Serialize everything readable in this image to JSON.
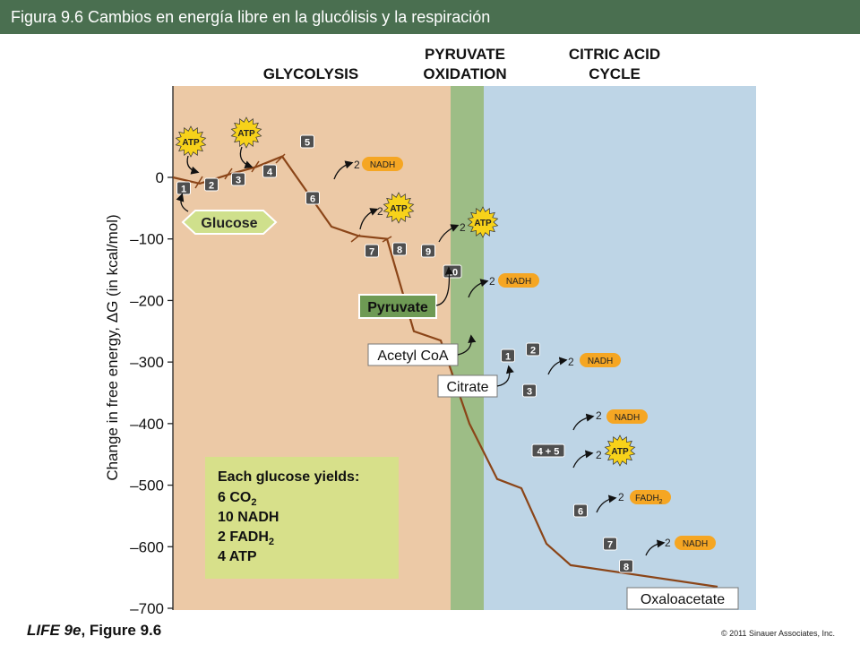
{
  "title": "Figura 9.6  Cambios en energía libre en la glucólisis y la respiración",
  "footer": {
    "left_italic": "LIFE 9e",
    "left_rest": ", Figure 9.6",
    "right": "© 2011 Sinauer Associates, Inc."
  },
  "colors": {
    "title_bar": "#4a6f50",
    "glycolysis_bg": "#ecc9a6",
    "pyruvate_bg": "#9dbd86",
    "citric_bg": "#bed5e6",
    "step_line": "#8b4518",
    "step_box": "#4f4f4f",
    "nadh_badge": "#f5a623",
    "atp_star": "#f7d21a",
    "glucose_box": "#cfe08c",
    "pyruvate_box": "#6e9a54",
    "summary_box": "#d7e08a"
  },
  "stages": {
    "glycolysis": "GLYCOLYSIS",
    "pyruvate_line1": "PYRUVATE",
    "pyruvate_line2": "OXIDATION",
    "citric_line1": "CITRIC ACID",
    "citric_line2": "CYCLE"
  },
  "chart_data": {
    "type": "line",
    "ylabel": "Change in free energy, ΔG (in kcal/mol)",
    "ylim": [
      -700,
      0
    ],
    "yticks": [
      0,
      -100,
      -200,
      -300,
      -400,
      -500,
      -600,
      -700
    ],
    "ytick_labels": [
      "0",
      "–100",
      "–200",
      "–300",
      "–400",
      "–500",
      "–600",
      "–700"
    ],
    "series": [
      {
        "values": [
          0,
          -10,
          -10,
          5,
          5,
          17,
          17,
          34,
          34,
          -80,
          -80,
          -95,
          -95,
          -100,
          -100,
          -250,
          -250,
          -265,
          -265,
          -400,
          -400,
          -490,
          -490,
          -505,
          -505,
          -595,
          -595,
          -630,
          -630,
          -665
        ]
      }
    ],
    "step_labels": [
      "1",
      "2",
      "3",
      "4",
      "5",
      "6",
      "7",
      "8",
      "9",
      "10",
      "1",
      "2",
      "3",
      "4 + 5",
      "6",
      "7",
      "8"
    ],
    "molecules": [
      "Glucose",
      "Pyruvate",
      "Acetyl CoA",
      "Citrate",
      "Oxaloacetate"
    ],
    "yields": [
      "ATP",
      "ATP",
      "NADH",
      "ATP",
      "ATP",
      "NADH",
      "NADH",
      "NADH",
      "ATP",
      "FADH",
      "NADH"
    ],
    "yield_count": "2",
    "summary": {
      "heading": "Each glucose yields:",
      "items": [
        "6 CO",
        "10 NADH",
        "2 FADH",
        "4 ATP"
      ],
      "subscript": "2"
    }
  }
}
